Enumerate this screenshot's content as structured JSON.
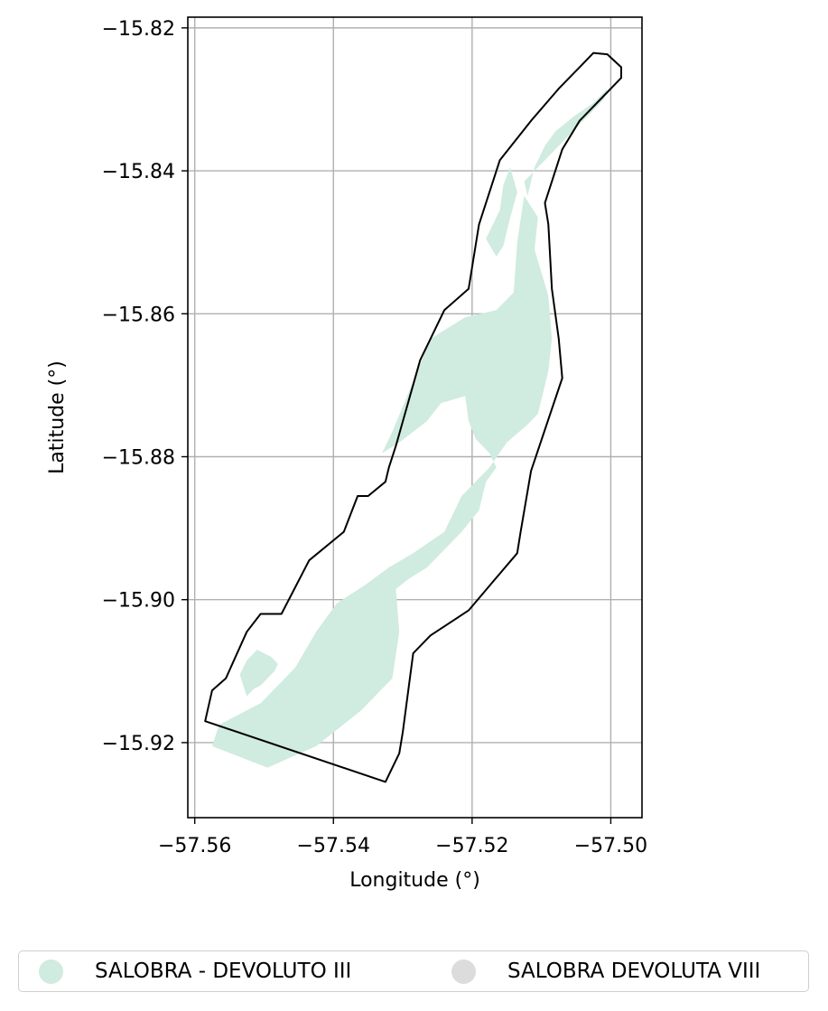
{
  "chart_data": {
    "type": "map",
    "xlabel": "Longitude (°)",
    "ylabel": "Latitude (°)",
    "xlim": [
      -57.561,
      -57.4955
    ],
    "ylim": [
      -15.9305,
      -15.8185
    ],
    "x_ticks": [
      -57.56,
      -57.54,
      -57.52,
      -57.5
    ],
    "x_tick_labels": [
      "−57.56",
      "−57.54",
      "−57.52",
      "−57.50"
    ],
    "y_ticks": [
      -15.82,
      -15.84,
      -15.86,
      -15.88,
      -15.9,
      -15.92
    ],
    "y_tick_labels": [
      "−15.82",
      "−15.84",
      "−15.86",
      "−15.88",
      "−15.90",
      "−15.92"
    ],
    "grid": true,
    "legend_position": "bottom",
    "layers": [
      {
        "name": "SALOBRA - DEVOLUTO III",
        "color": "#d0ebdf",
        "polygons": [
          [
            [
              -57.5125,
              -15.8435
            ],
            [
              -57.5135,
              -15.85
            ],
            [
              -57.514,
              -15.857
            ],
            [
              -57.5165,
              -15.8595
            ],
            [
              -57.521,
              -15.8605
            ],
            [
              -57.526,
              -15.8635
            ],
            [
              -57.5285,
              -15.8695
            ],
            [
              -57.5315,
              -15.8765
            ],
            [
              -57.533,
              -15.8795
            ],
            [
              -57.5305,
              -15.878
            ],
            [
              -57.5265,
              -15.875
            ],
            [
              -57.5245,
              -15.8725
            ],
            [
              -57.521,
              -15.8715
            ],
            [
              -57.5205,
              -15.875
            ],
            [
              -57.5195,
              -15.8775
            ],
            [
              -57.5175,
              -15.8795
            ],
            [
              -57.5165,
              -15.8815
            ],
            [
              -57.518,
              -15.8835
            ],
            [
              -57.519,
              -15.8875
            ],
            [
              -57.5215,
              -15.8905
            ],
            [
              -57.5245,
              -15.8935
            ],
            [
              -57.5265,
              -15.8955
            ],
            [
              -57.529,
              -15.897
            ],
            [
              -57.531,
              -15.8985
            ],
            [
              -57.5305,
              -15.9045
            ],
            [
              -57.5315,
              -15.911
            ],
            [
              -57.536,
              -15.9155
            ],
            [
              -57.5425,
              -15.9205
            ],
            [
              -57.5495,
              -15.9235
            ],
            [
              -57.5575,
              -15.9205
            ],
            [
              -57.5565,
              -15.9175
            ],
            [
              -57.5505,
              -15.9145
            ],
            [
              -57.5455,
              -15.9095
            ],
            [
              -57.5425,
              -15.9045
            ],
            [
              -57.5395,
              -15.9005
            ],
            [
              -57.5355,
              -15.898
            ],
            [
              -57.532,
              -15.8955
            ],
            [
              -57.5285,
              -15.8935
            ],
            [
              -57.524,
              -15.8905
            ],
            [
              -57.5215,
              -15.8855
            ],
            [
              -57.5175,
              -15.8815
            ],
            [
              -57.515,
              -15.878
            ],
            [
              -57.512,
              -15.8755
            ],
            [
              -57.5105,
              -15.874
            ],
            [
              -57.509,
              -15.868
            ],
            [
              -57.5085,
              -15.8635
            ],
            [
              -57.509,
              -15.8575
            ],
            [
              -57.511,
              -15.851
            ],
            [
              -57.5105,
              -15.8465
            ],
            [
              -57.5125,
              -15.8435
            ]
          ],
          [
            [
              -57.5005,
              -15.8285
            ],
            [
              -57.5025,
              -15.8305
            ],
            [
              -57.5055,
              -15.8325
            ],
            [
              -57.508,
              -15.8345
            ],
            [
              -57.5095,
              -15.8365
            ],
            [
              -57.511,
              -15.8395
            ],
            [
              -57.5115,
              -15.8415
            ],
            [
              -57.512,
              -15.8435
            ],
            [
              -57.5125,
              -15.8415
            ],
            [
              -57.5095,
              -15.8385
            ],
            [
              -57.5075,
              -15.8365
            ],
            [
              -57.5055,
              -15.8345
            ],
            [
              -57.503,
              -15.832
            ],
            [
              -57.501,
              -15.83
            ],
            [
              -57.5005,
              -15.8285
            ]
          ],
          [
            [
              -57.5145,
              -15.8395
            ],
            [
              -57.5155,
              -15.842
            ],
            [
              -57.516,
              -15.8455
            ],
            [
              -57.518,
              -15.8495
            ],
            [
              -57.5165,
              -15.852
            ],
            [
              -57.5155,
              -15.8505
            ],
            [
              -57.5145,
              -15.8465
            ],
            [
              -57.5135,
              -15.843
            ],
            [
              -57.5145,
              -15.8395
            ]
          ],
          [
            [
              -57.5525,
              -15.9135
            ],
            [
              -57.5515,
              -15.9125
            ],
            [
              -57.5505,
              -15.912
            ],
            [
              -57.5495,
              -15.911
            ],
            [
              -57.5485,
              -15.91
            ],
            [
              -57.548,
              -15.909
            ],
            [
              -57.549,
              -15.908
            ],
            [
              -57.55,
              -15.9075
            ],
            [
              -57.551,
              -15.907
            ],
            [
              -57.5525,
              -15.9085
            ],
            [
              -57.5535,
              -15.9105
            ],
            [
              -57.5525,
              -15.9135
            ]
          ]
        ]
      },
      {
        "name": "SALOBRA DEVOLUTA VIII",
        "color": "#dcdcdc",
        "polygons": []
      }
    ],
    "outline": [
      [
        -57.5025,
        -15.8235
      ],
      [
        -57.5005,
        -15.8237
      ],
      [
        -57.4985,
        -15.8255
      ],
      [
        -57.4985,
        -15.827
      ],
      [
        -57.5015,
        -15.83
      ],
      [
        -57.5045,
        -15.833
      ],
      [
        -57.507,
        -15.837
      ],
      [
        -57.5095,
        -15.8445
      ],
      [
        -57.509,
        -15.8475
      ],
      [
        -57.5085,
        -15.8565
      ],
      [
        -57.5075,
        -15.8635
      ],
      [
        -57.507,
        -15.869
      ],
      [
        -57.5115,
        -15.882
      ],
      [
        -57.513,
        -15.8905
      ],
      [
        -57.5135,
        -15.8935
      ],
      [
        -57.517,
        -15.8975
      ],
      [
        -57.5205,
        -15.9015
      ],
      [
        -57.526,
        -15.905
      ],
      [
        -57.5285,
        -15.9075
      ],
      [
        -57.53,
        -15.9185
      ],
      [
        -57.5305,
        -15.9215
      ],
      [
        -57.5325,
        -15.9255
      ],
      [
        -57.5585,
        -15.917
      ],
      [
        -57.5575,
        -15.9127
      ],
      [
        -57.5555,
        -15.911
      ],
      [
        -57.5525,
        -15.9045
      ],
      [
        -57.5505,
        -15.902
      ],
      [
        -57.5475,
        -15.902
      ],
      [
        -57.5435,
        -15.8945
      ],
      [
        -57.5385,
        -15.8905
      ],
      [
        -57.5365,
        -15.8855
      ],
      [
        -57.535,
        -15.8855
      ],
      [
        -57.5325,
        -15.8835
      ],
      [
        -57.532,
        -15.8815
      ],
      [
        -57.531,
        -15.8785
      ],
      [
        -57.5275,
        -15.8665
      ],
      [
        -57.524,
        -15.8595
      ],
      [
        -57.5205,
        -15.8565
      ],
      [
        -57.519,
        -15.8475
      ],
      [
        -57.516,
        -15.8385
      ],
      [
        -57.5115,
        -15.833
      ],
      [
        -57.5075,
        -15.8285
      ],
      [
        -57.5045,
        -15.8255
      ],
      [
        -57.5025,
        -15.8235
      ]
    ]
  },
  "legend": {
    "entries": [
      {
        "label": "SALOBRA - DEVOLUTO III",
        "color": "#d0ebdf"
      },
      {
        "label": "SALOBRA DEVOLUTA VIII",
        "color": "#dcdcdc"
      }
    ]
  }
}
